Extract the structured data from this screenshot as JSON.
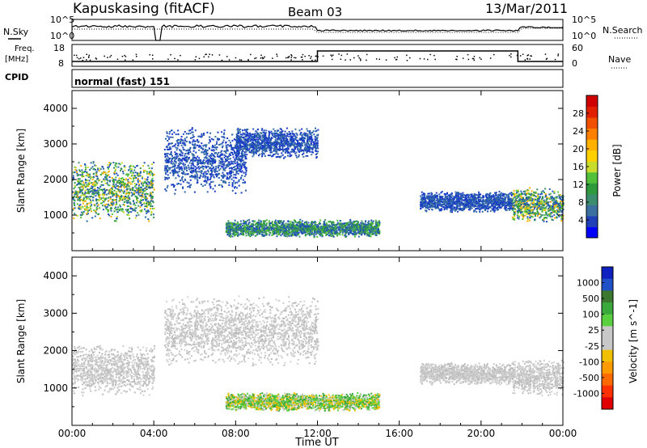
{
  "header": {
    "station": "Kapuskasing (fitACF)",
    "beam": "Beam 03",
    "date": "13/Mar/2011"
  },
  "status_panel": {
    "left_labels": {
      "nsky": "N.Sky",
      "freq": "Freq.",
      "freq_unit": "[MHz]",
      "cpid": "CPID"
    },
    "right_labels": {
      "nsearch": "N.Search",
      "nave": "Nave"
    },
    "noise_ticks": {
      "top": "10^5",
      "bottom": "10^0"
    },
    "freq_ticks": [
      "18",
      "8"
    ],
    "nave_ticks": [
      "60",
      "0"
    ],
    "cpid_text": "normal (fast) 151"
  },
  "time_axis": {
    "label": "Time UT",
    "ticks": [
      "00:00",
      "04:00",
      "08:00",
      "12:00",
      "16:00",
      "20:00",
      "00:00"
    ]
  },
  "chart_data": [
    {
      "type": "heatmap",
      "panel": "power",
      "ylabel": "Slant Range [km]",
      "y_ticks": [
        "1000",
        "2000",
        "3000",
        "4000"
      ],
      "ylim": [
        0,
        4500
      ],
      "xlim_hours": [
        0,
        24
      ],
      "colorbar": {
        "label": "Power [dB]",
        "ticks": [
          "4",
          "8",
          "12",
          "16",
          "20",
          "24",
          "28"
        ],
        "colors": [
          "#0000ff",
          "#2040b8",
          "#3a6fa0",
          "#3c8c6e",
          "#2e9a3c",
          "#52c03a",
          "#c8dc2c",
          "#ffd000",
          "#ffb000",
          "#ff8000",
          "#f05000",
          "#e02000",
          "#d00000"
        ]
      },
      "echo_regions": [
        {
          "t_start": 0.0,
          "t_end": 4.0,
          "r_low": 800,
          "r_high": 2600,
          "dominant": "blue-green-orange"
        },
        {
          "t_start": 4.5,
          "t_end": 8.5,
          "r_low": 1600,
          "r_high": 3500,
          "dominant": "blue"
        },
        {
          "t_start": 8.0,
          "t_end": 12.0,
          "r_low": 2600,
          "r_high": 3500,
          "dominant": "blue"
        },
        {
          "t_start": 7.5,
          "t_end": 15.0,
          "r_low": 400,
          "r_high": 900,
          "dominant": "blue-green"
        },
        {
          "t_start": 17.0,
          "t_end": 21.5,
          "r_low": 1100,
          "r_high": 1700,
          "dominant": "blue"
        },
        {
          "t_start": 21.5,
          "t_end": 24.0,
          "r_low": 800,
          "r_high": 1800,
          "dominant": "blue-green-orange"
        }
      ]
    },
    {
      "type": "heatmap",
      "panel": "velocity",
      "ylabel": "Slant Range [km]",
      "y_ticks": [
        "1000",
        "2000",
        "3000",
        "4000"
      ],
      "ylim": [
        0,
        4500
      ],
      "xlim_hours": [
        0,
        24
      ],
      "colorbar": {
        "label": "Velocity [m s^-1]",
        "ticks": [
          "1000",
          "500",
          "100",
          "25",
          "-25",
          "-100",
          "-500",
          "-1000"
        ],
        "colors": [
          "#1020c0",
          "#2050c8",
          "#3c7830",
          "#3aa83a",
          "#5ad040",
          "#c8c8c8",
          "#c8c8c8",
          "#f0c000",
          "#ff9a00",
          "#ff6a00",
          "#ff3000",
          "#e00000"
        ]
      },
      "echo_regions": [
        {
          "t_start": 0.0,
          "t_end": 4.0,
          "r_low": 800,
          "r_high": 2200,
          "dominant": "grey"
        },
        {
          "t_start": 4.5,
          "t_end": 12.0,
          "r_low": 1600,
          "r_high": 3500,
          "dominant": "grey"
        },
        {
          "t_start": 7.5,
          "t_end": 15.0,
          "r_low": 400,
          "r_high": 900,
          "dominant": "green-yellow"
        },
        {
          "t_start": 17.0,
          "t_end": 21.5,
          "r_low": 1100,
          "r_high": 1700,
          "dominant": "grey"
        },
        {
          "t_start": 21.5,
          "t_end": 24.0,
          "r_low": 800,
          "r_high": 1800,
          "dominant": "grey"
        }
      ]
    }
  ]
}
